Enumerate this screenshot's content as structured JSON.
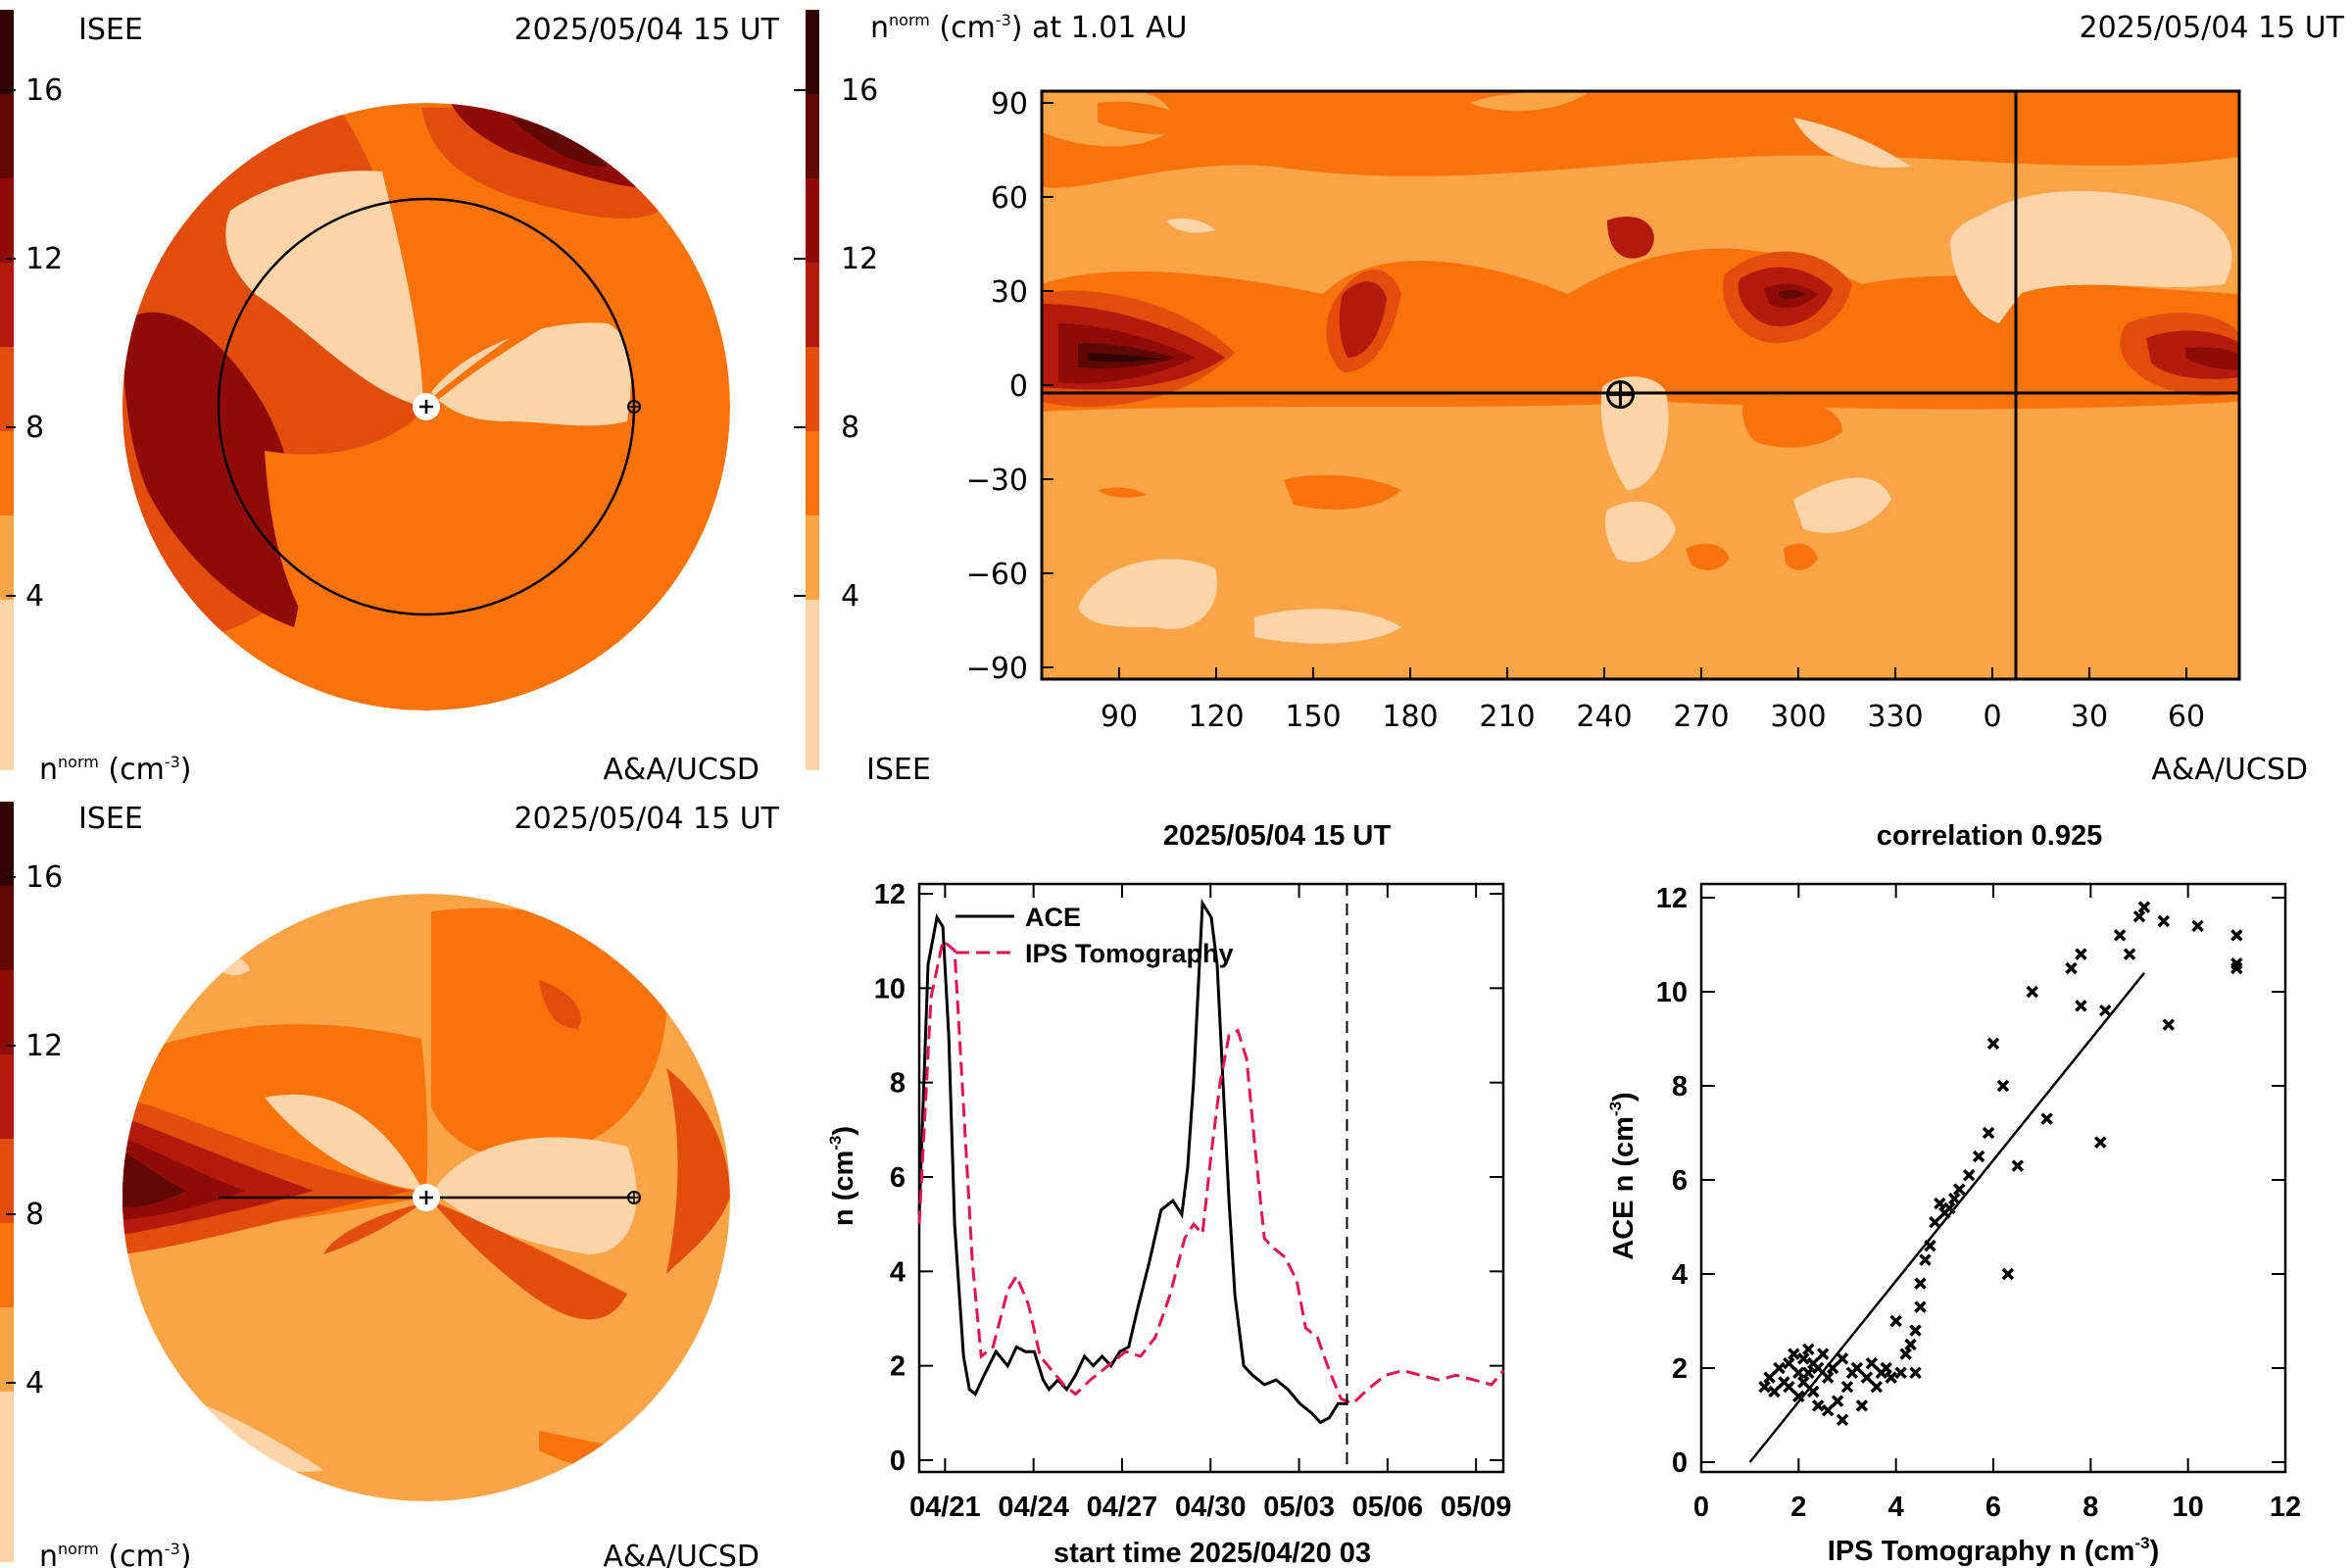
{
  "colors": {
    "levels": [
      "#fdd5a9",
      "#f9a447",
      "#f8730b",
      "#e14d0c",
      "#b41a0c",
      "#8e0b08",
      "#5f0703",
      "#2f0403"
    ],
    "ace": "#000000",
    "tomography": "#e0125a"
  },
  "colorbar": {
    "ticks": [
      "4",
      "8",
      "12",
      "16"
    ]
  },
  "panels": {
    "top_left": {
      "source": "ISEE",
      "time": "2025/05/04 15 UT",
      "unit": "n",
      "unit_sup": "norm",
      "unit_rest": " (cm",
      "unit_exp": "-3",
      "unit_end": ")",
      "credit": "A&A/UCSD"
    },
    "top_right": {
      "title": "n",
      "title_sup": "norm",
      "title_mid": " (cm",
      "title_exp": "-3",
      "title_end": ") at 1.01 AU",
      "time": "2025/05/04 15 UT",
      "source": "ISEE",
      "credit": "A&A/UCSD"
    },
    "bottom_left": {
      "source": "ISEE",
      "time": "2025/05/04 15 UT",
      "unit": "n",
      "unit_sup": "norm",
      "unit_rest": " (cm",
      "unit_exp": "-3",
      "unit_end": ")",
      "credit": "A&A/UCSD"
    }
  },
  "chart_data": [
    {
      "type": "heatmap",
      "name": "synoptic-map",
      "x_ticks": [
        "90",
        "120",
        "150",
        "180",
        "210",
        "240",
        "270",
        "300",
        "330",
        "0",
        "30",
        "60"
      ],
      "y_ticks": [
        "90",
        "60",
        "30",
        "0",
        "−30",
        "−60",
        "−90"
      ],
      "ylim": [
        -90,
        90
      ],
      "earth_position": {
        "lon": 245,
        "lat": -3
      }
    },
    {
      "type": "line",
      "title": "2025/05/04 15 UT",
      "xlabel": "start time 2025/04/20 03",
      "ylabel": "n (cm",
      "ylabel_exp": "-3",
      "ylabel_end": ")",
      "x_ticks": [
        "04/21",
        "04/24",
        "04/27",
        "04/30",
        "05/03",
        "05/06",
        "05/09"
      ],
      "x_tick_days": [
        0.875,
        3.875,
        6.875,
        9.875,
        12.875,
        15.875,
        18.875
      ],
      "y_ticks": [
        "0",
        "2",
        "4",
        "6",
        "8",
        "10",
        "12"
      ],
      "xlim": [
        0,
        19.8
      ],
      "ylim": [
        0,
        12
      ],
      "now_day": 14.5,
      "series": [
        {
          "name": "ACE",
          "x": [
            0,
            0.3,
            0.6,
            0.8,
            1.0,
            1.2,
            1.5,
            1.7,
            1.9,
            2.2,
            2.6,
            3.0,
            3.3,
            3.6,
            3.9,
            4.2,
            4.4,
            4.7,
            5.0,
            5.3,
            5.6,
            5.9,
            6.2,
            6.5,
            6.8,
            7.1,
            7.4,
            7.8,
            8.2,
            8.6,
            8.9,
            9.1,
            9.3,
            9.6,
            9.9,
            10.1,
            10.3,
            10.5,
            10.7,
            11.0,
            11.3,
            11.7,
            12.1,
            12.5,
            12.9,
            13.3,
            13.6,
            13.9,
            14.2,
            14.5
          ],
          "y": [
            5.2,
            10.5,
            11.5,
            11.3,
            9.0,
            5.0,
            2.2,
            1.5,
            1.4,
            1.8,
            2.3,
            2.0,
            2.4,
            2.3,
            2.3,
            1.7,
            1.5,
            1.7,
            1.5,
            1.8,
            2.2,
            2.0,
            2.2,
            2.0,
            2.3,
            2.4,
            3.2,
            4.2,
            5.3,
            5.5,
            5.2,
            6.2,
            8.0,
            11.8,
            11.5,
            10.5,
            8.0,
            5.5,
            3.5,
            2.0,
            1.8,
            1.6,
            1.7,
            1.5,
            1.2,
            1.0,
            0.8,
            0.9,
            1.2,
            1.2
          ]
        },
        {
          "name": "IPS Tomography",
          "x": [
            0,
            0.4,
            0.8,
            1.2,
            1.5,
            1.8,
            2.1,
            2.5,
            3.0,
            3.3,
            3.7,
            4.1,
            4.5,
            4.9,
            5.3,
            5.8,
            6.2,
            6.6,
            7.0,
            7.5,
            8.0,
            8.5,
            9.0,
            9.3,
            9.6,
            9.9,
            10.2,
            10.5,
            10.8,
            11.1,
            11.4,
            11.7,
            12.0,
            12.4,
            12.8,
            13.1,
            13.5,
            13.9,
            14.3,
            14.7,
            15.2,
            15.8,
            16.4,
            17.0,
            17.6,
            18.2,
            18.8,
            19.4,
            19.8
          ],
          "y": [
            5.0,
            9.8,
            11.0,
            10.8,
            7.5,
            4.2,
            2.2,
            2.4,
            3.6,
            3.9,
            3.3,
            2.2,
            1.9,
            1.6,
            1.4,
            1.7,
            1.9,
            2.1,
            2.3,
            2.2,
            2.6,
            3.5,
            4.7,
            5.0,
            4.8,
            6.5,
            8.0,
            9.0,
            9.1,
            8.5,
            6.5,
            4.7,
            4.5,
            4.3,
            3.8,
            2.8,
            2.6,
            1.9,
            1.3,
            1.2,
            1.5,
            1.8,
            1.9,
            1.8,
            1.7,
            1.8,
            1.7,
            1.6,
            1.9
          ]
        }
      ]
    },
    {
      "type": "scatter",
      "title": "correlation 0.925",
      "xlabel": "IPS Tomography n (cm",
      "xlabel_exp": "-3",
      "xlabel_end": ")",
      "ylabel": "ACE n (cm",
      "ylabel_exp": "-3",
      "ylabel_end": ")",
      "x_ticks": [
        "0",
        "2",
        "4",
        "6",
        "8",
        "10",
        "12"
      ],
      "y_ticks": [
        "0",
        "2",
        "4",
        "6",
        "8",
        "10",
        "12"
      ],
      "xlim": [
        0,
        12
      ],
      "ylim": [
        0,
        12
      ],
      "fit_line": {
        "x": [
          1.0,
          9.1
        ],
        "y": [
          0.0,
          10.4
        ]
      },
      "points": [
        [
          1.3,
          1.6
        ],
        [
          1.4,
          1.8
        ],
        [
          1.5,
          1.5
        ],
        [
          1.6,
          2.0
        ],
        [
          1.7,
          1.7
        ],
        [
          1.8,
          2.1
        ],
        [
          1.8,
          1.6
        ],
        [
          1.9,
          2.3
        ],
        [
          2.0,
          1.9
        ],
        [
          2.0,
          1.4
        ],
        [
          2.1,
          2.2
        ],
        [
          2.1,
          1.7
        ],
        [
          2.2,
          2.4
        ],
        [
          2.2,
          1.9
        ],
        [
          2.3,
          2.1
        ],
        [
          2.3,
          1.5
        ],
        [
          2.4,
          2.0
        ],
        [
          2.4,
          1.2
        ],
        [
          2.5,
          2.3
        ],
        [
          2.6,
          1.8
        ],
        [
          2.6,
          1.1
        ],
        [
          2.7,
          2.0
        ],
        [
          2.8,
          1.3
        ],
        [
          2.9,
          2.2
        ],
        [
          2.9,
          0.9
        ],
        [
          3.0,
          1.6
        ],
        [
          3.1,
          1.9
        ],
        [
          3.2,
          2.0
        ],
        [
          3.3,
          1.2
        ],
        [
          3.4,
          1.8
        ],
        [
          3.5,
          2.1
        ],
        [
          3.6,
          1.6
        ],
        [
          3.7,
          1.9
        ],
        [
          3.8,
          2.0
        ],
        [
          3.9,
          1.8
        ],
        [
          4.0,
          3.0
        ],
        [
          4.1,
          1.9
        ],
        [
          4.2,
          2.3
        ],
        [
          4.3,
          2.5
        ],
        [
          4.4,
          1.9
        ],
        [
          4.4,
          2.8
        ],
        [
          4.5,
          3.3
        ],
        [
          4.5,
          3.8
        ],
        [
          4.6,
          4.3
        ],
        [
          4.7,
          4.6
        ],
        [
          4.8,
          5.1
        ],
        [
          4.9,
          5.5
        ],
        [
          5.0,
          5.3
        ],
        [
          5.1,
          5.4
        ],
        [
          5.2,
          5.6
        ],
        [
          5.3,
          5.8
        ],
        [
          5.5,
          6.1
        ],
        [
          5.7,
          6.5
        ],
        [
          5.9,
          7.0
        ],
        [
          6.0,
          8.9
        ],
        [
          6.2,
          8.0
        ],
        [
          6.3,
          4.0
        ],
        [
          6.5,
          6.3
        ],
        [
          6.8,
          10.0
        ],
        [
          7.1,
          7.3
        ],
        [
          7.6,
          10.5
        ],
        [
          7.8,
          9.7
        ],
        [
          7.8,
          10.8
        ],
        [
          8.2,
          6.8
        ],
        [
          8.3,
          9.6
        ],
        [
          8.6,
          11.2
        ],
        [
          8.8,
          10.8
        ],
        [
          9.0,
          11.6
        ],
        [
          9.1,
          11.8
        ],
        [
          9.5,
          11.5
        ],
        [
          9.6,
          9.3
        ],
        [
          10.2,
          11.4
        ],
        [
          11.0,
          11.2
        ],
        [
          11.0,
          10.6
        ],
        [
          11.0,
          10.5
        ]
      ]
    }
  ]
}
